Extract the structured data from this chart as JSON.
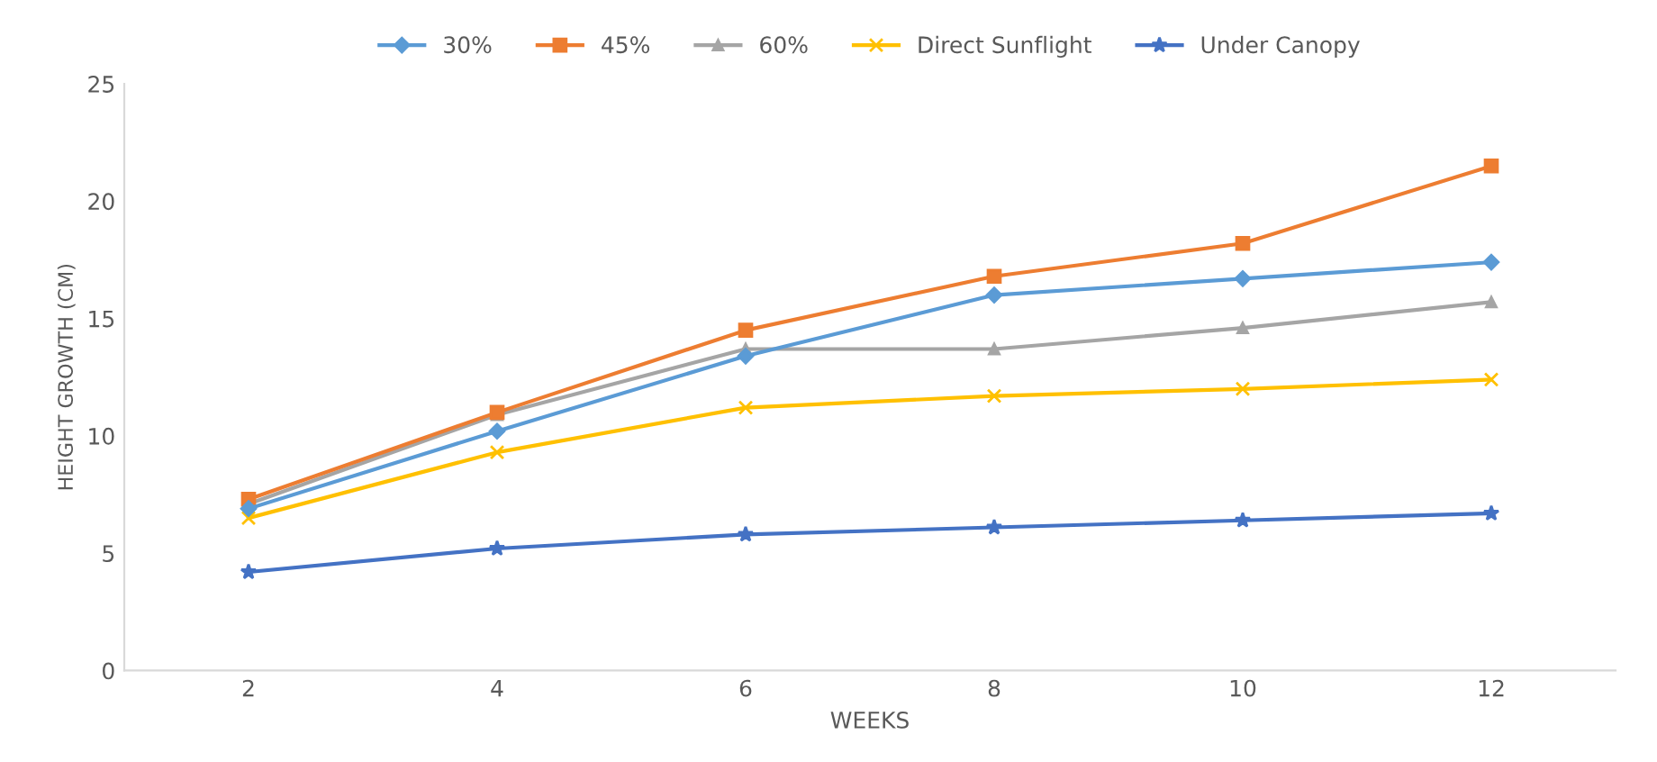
{
  "chart_data": {
    "type": "line",
    "xlabel": "WEEKS",
    "ylabel": "HEIGHT GROWTH (CM)",
    "categories": [
      "2",
      "4",
      "6",
      "8",
      "10",
      "12"
    ],
    "series": [
      {
        "name": "30%",
        "color": "#5b9bd5",
        "marker": "diamond",
        "values": [
          6.9,
          10.2,
          13.4,
          16.0,
          16.7,
          17.4
        ]
      },
      {
        "name": "45%",
        "color": "#ed7d31",
        "marker": "square",
        "values": [
          7.3,
          11.0,
          14.5,
          16.8,
          18.2,
          21.5
        ]
      },
      {
        "name": "60%",
        "color": "#a5a5a5",
        "marker": "triangle",
        "values": [
          7.1,
          10.9,
          13.7,
          13.7,
          14.6,
          15.7
        ]
      },
      {
        "name": "Direct Sunflight",
        "color": "#ffc000",
        "marker": "cross",
        "values": [
          6.5,
          9.3,
          11.2,
          11.7,
          12.0,
          12.4
        ]
      },
      {
        "name": "Under Canopy",
        "color": "#4472c4",
        "marker": "star",
        "values": [
          4.2,
          5.2,
          5.8,
          6.1,
          6.4,
          6.7
        ]
      }
    ],
    "ylim": [
      0,
      25
    ],
    "yticks": [
      0,
      5,
      10,
      15,
      20,
      25
    ],
    "grid": false,
    "legend": "top"
  }
}
